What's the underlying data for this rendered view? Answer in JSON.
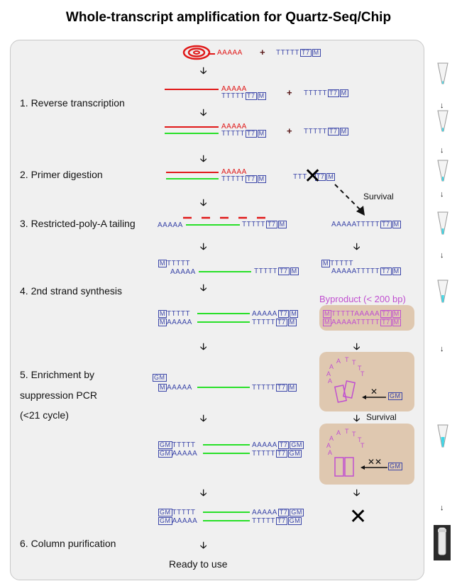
{
  "title": "Whole-transcript amplification for Quartz-Seq/Chip",
  "steps": {
    "s1": "1. Reverse transcription",
    "s2": "2. Primer digestion",
    "s3": "3. Restricted-poly-A tailing",
    "s4": "4. 2nd strand synthesis",
    "s5a": "5. Enrichment by",
    "s5b": "suppression PCR",
    "s5c": "(<21 cycle)",
    "s6": "6. Column purification"
  },
  "ready": "Ready to use",
  "survival": "Survival",
  "byproduct": "Byproduct (< 200 bp)",
  "seq": {
    "polyA": "AAAAA",
    "polyT": "TTTTT",
    "polyAT": "AAAAATTTTT",
    "t3": "TTT",
    "t7": "T7",
    "m": "M",
    "gm": "GM",
    "plus": "+"
  },
  "colors": {
    "rna": "#e01818",
    "cdna": "#28e028",
    "primer": "#3a45a8",
    "byproduct": "#c04fd0",
    "box_fill": "#dfc8b0",
    "panel": "#f0f0f0",
    "tube_liquid": "#3ed8e8"
  }
}
